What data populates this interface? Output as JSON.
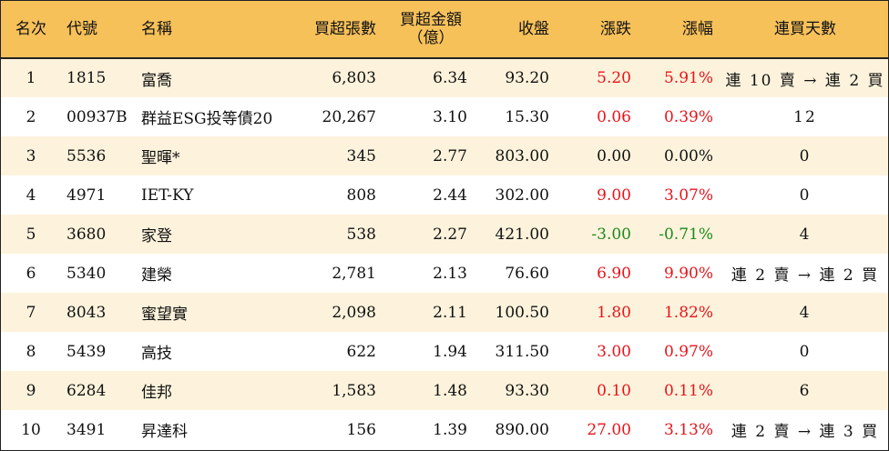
{
  "headers": {
    "rank": "名次",
    "code": "代號",
    "name": "名稱",
    "net_buy_lots": "買超張數",
    "net_buy_amount_line1": "買超金額",
    "net_buy_amount_line2": "（億）",
    "close": "收盤",
    "change": "漲跌",
    "change_pct": "漲幅",
    "consecutive_days": "連買天數"
  },
  "rows": [
    {
      "rank": "1",
      "code": "1815",
      "name": "富喬",
      "net_buy_lots": "6,803",
      "net_buy_amount": "6.34",
      "close": "93.20",
      "change": "5.20",
      "change_pct": "5.91%",
      "trend": "up",
      "consecutive_days": "連 10 賣 → 連 2 買"
    },
    {
      "rank": "2",
      "code": "00937B",
      "name": "群益ESG投等債20",
      "net_buy_lots": "20,267",
      "net_buy_amount": "3.10",
      "close": "15.30",
      "change": "0.06",
      "change_pct": "0.39%",
      "trend": "up",
      "consecutive_days": "12"
    },
    {
      "rank": "3",
      "code": "5536",
      "name": "聖暉*",
      "net_buy_lots": "345",
      "net_buy_amount": "2.77",
      "close": "803.00",
      "change": "0.00",
      "change_pct": "0.00%",
      "trend": "flat",
      "consecutive_days": "0"
    },
    {
      "rank": "4",
      "code": "4971",
      "name": "IET-KY",
      "net_buy_lots": "808",
      "net_buy_amount": "2.44",
      "close": "302.00",
      "change": "9.00",
      "change_pct": "3.07%",
      "trend": "up",
      "consecutive_days": "0"
    },
    {
      "rank": "5",
      "code": "3680",
      "name": "家登",
      "net_buy_lots": "538",
      "net_buy_amount": "2.27",
      "close": "421.00",
      "change": "-3.00",
      "change_pct": "-0.71%",
      "trend": "down",
      "consecutive_days": "4"
    },
    {
      "rank": "6",
      "code": "5340",
      "name": "建榮",
      "net_buy_lots": "2,781",
      "net_buy_amount": "2.13",
      "close": "76.60",
      "change": "6.90",
      "change_pct": "9.90%",
      "trend": "up",
      "consecutive_days": "連 2 賣 → 連 2 買"
    },
    {
      "rank": "7",
      "code": "8043",
      "name": "蜜望實",
      "net_buy_lots": "2,098",
      "net_buy_amount": "2.11",
      "close": "100.50",
      "change": "1.80",
      "change_pct": "1.82%",
      "trend": "up",
      "consecutive_days": "4"
    },
    {
      "rank": "8",
      "code": "5439",
      "name": "高技",
      "net_buy_lots": "622",
      "net_buy_amount": "1.94",
      "close": "311.50",
      "change": "3.00",
      "change_pct": "0.97%",
      "trend": "up",
      "consecutive_days": "0"
    },
    {
      "rank": "9",
      "code": "6284",
      "name": "佳邦",
      "net_buy_lots": "1,583",
      "net_buy_amount": "1.48",
      "close": "93.30",
      "change": "0.10",
      "change_pct": "0.11%",
      "trend": "up",
      "consecutive_days": "6"
    },
    {
      "rank": "10",
      "code": "3491",
      "name": "昇達科",
      "net_buy_lots": "156",
      "net_buy_amount": "1.39",
      "close": "890.00",
      "change": "27.00",
      "change_pct": "3.13%",
      "trend": "up",
      "consecutive_days": "連 2 賣 → 連 3 買"
    }
  ]
}
